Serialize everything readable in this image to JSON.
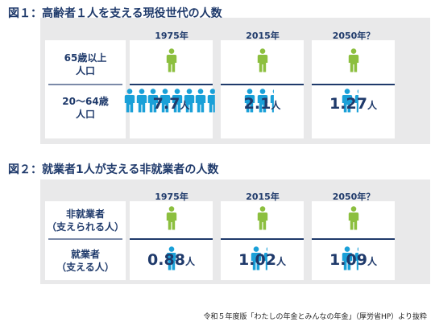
{
  "figure1": {
    "title": "図１：高齢者１人を支える現役世代の人数",
    "row_top_label_lines": [
      "65歳以上",
      "人口"
    ],
    "row_bottom_label_lines": [
      "20～64歳",
      "人口"
    ],
    "columns": [
      {
        "year": "1975年",
        "value": "7.7",
        "unit": "人",
        "supporters": 7.7
      },
      {
        "year": "2015年",
        "value": "2.1",
        "unit": "人",
        "supporters": 2.1
      },
      {
        "year": "2050年？",
        "value": "1.27",
        "unit": "人",
        "supporters": 1.27
      }
    ]
  },
  "figure2": {
    "title": "図２：就業者1人が支える非就業者の人数",
    "row_top_label_lines": [
      "非就業者",
      "（支えられる人）"
    ],
    "row_bottom_label_lines": [
      "就業者",
      "（支える人）"
    ],
    "columns": [
      {
        "year": "1975年",
        "value": "0.88",
        "unit": "人",
        "supporters": 0.88
      },
      {
        "year": "2015年",
        "value": "1.02",
        "unit": "人",
        "supporters": 1.02
      },
      {
        "year": "2050年？",
        "value": "1.09",
        "unit": "人",
        "supporters": 1.09
      }
    ]
  },
  "colors": {
    "supported": "#8cbf3f",
    "supporter": "#1aa0d8",
    "heading": "#1f3a6b",
    "panel": "#e9e9ea"
  },
  "source": "令和５年度版「わたしの年金とみんなの年金」（厚労省HP）より抜粋"
}
